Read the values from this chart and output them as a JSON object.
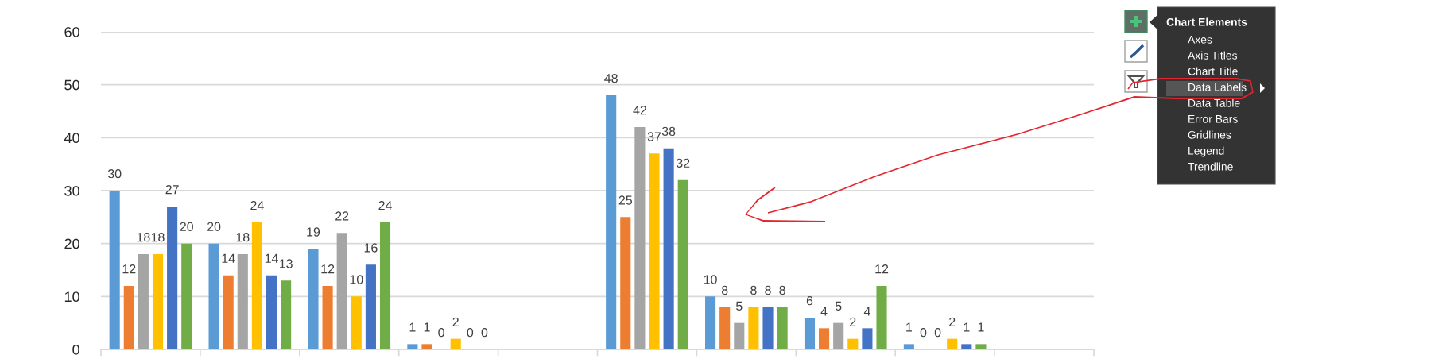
{
  "chart_data": {
    "type": "bar",
    "categories": [
      null,
      null,
      null,
      null,
      null,
      null,
      null,
      null,
      null,
      null
    ],
    "series": [
      {
        "color": "#5b9bd5",
        "values": [
          30,
          20,
          19,
          1,
          null,
          48,
          10,
          6,
          1,
          null
        ]
      },
      {
        "color": "#ed7d31",
        "values": [
          12,
          14,
          12,
          1,
          null,
          25,
          8,
          4,
          0,
          null
        ]
      },
      {
        "color": "#a5a5a5",
        "values": [
          18,
          18,
          22,
          0,
          null,
          42,
          5,
          5,
          0,
          null
        ]
      },
      {
        "color": "#ffc000",
        "values": [
          18,
          24,
          10,
          2,
          null,
          37,
          8,
          2,
          2,
          null
        ]
      },
      {
        "color": "#4472c4",
        "values": [
          27,
          14,
          16,
          0,
          null,
          38,
          8,
          4,
          1,
          null
        ]
      },
      {
        "color": "#70ad47",
        "values": [
          20,
          13,
          24,
          0,
          null,
          32,
          8,
          12,
          1,
          null
        ]
      }
    ],
    "ylim": [
      0,
      60
    ],
    "yticks": [
      0,
      10,
      20,
      30,
      40,
      50,
      60
    ],
    "grid": "y",
    "data_labels": true,
    "annotations": [
      "Chart Elements",
      "Axes",
      "Axis Titles",
      "Chart Title",
      "Data Labels",
      "Data Table",
      "Error Bars",
      "Gridlines",
      "Legend",
      "Trendline"
    ]
  }
}
